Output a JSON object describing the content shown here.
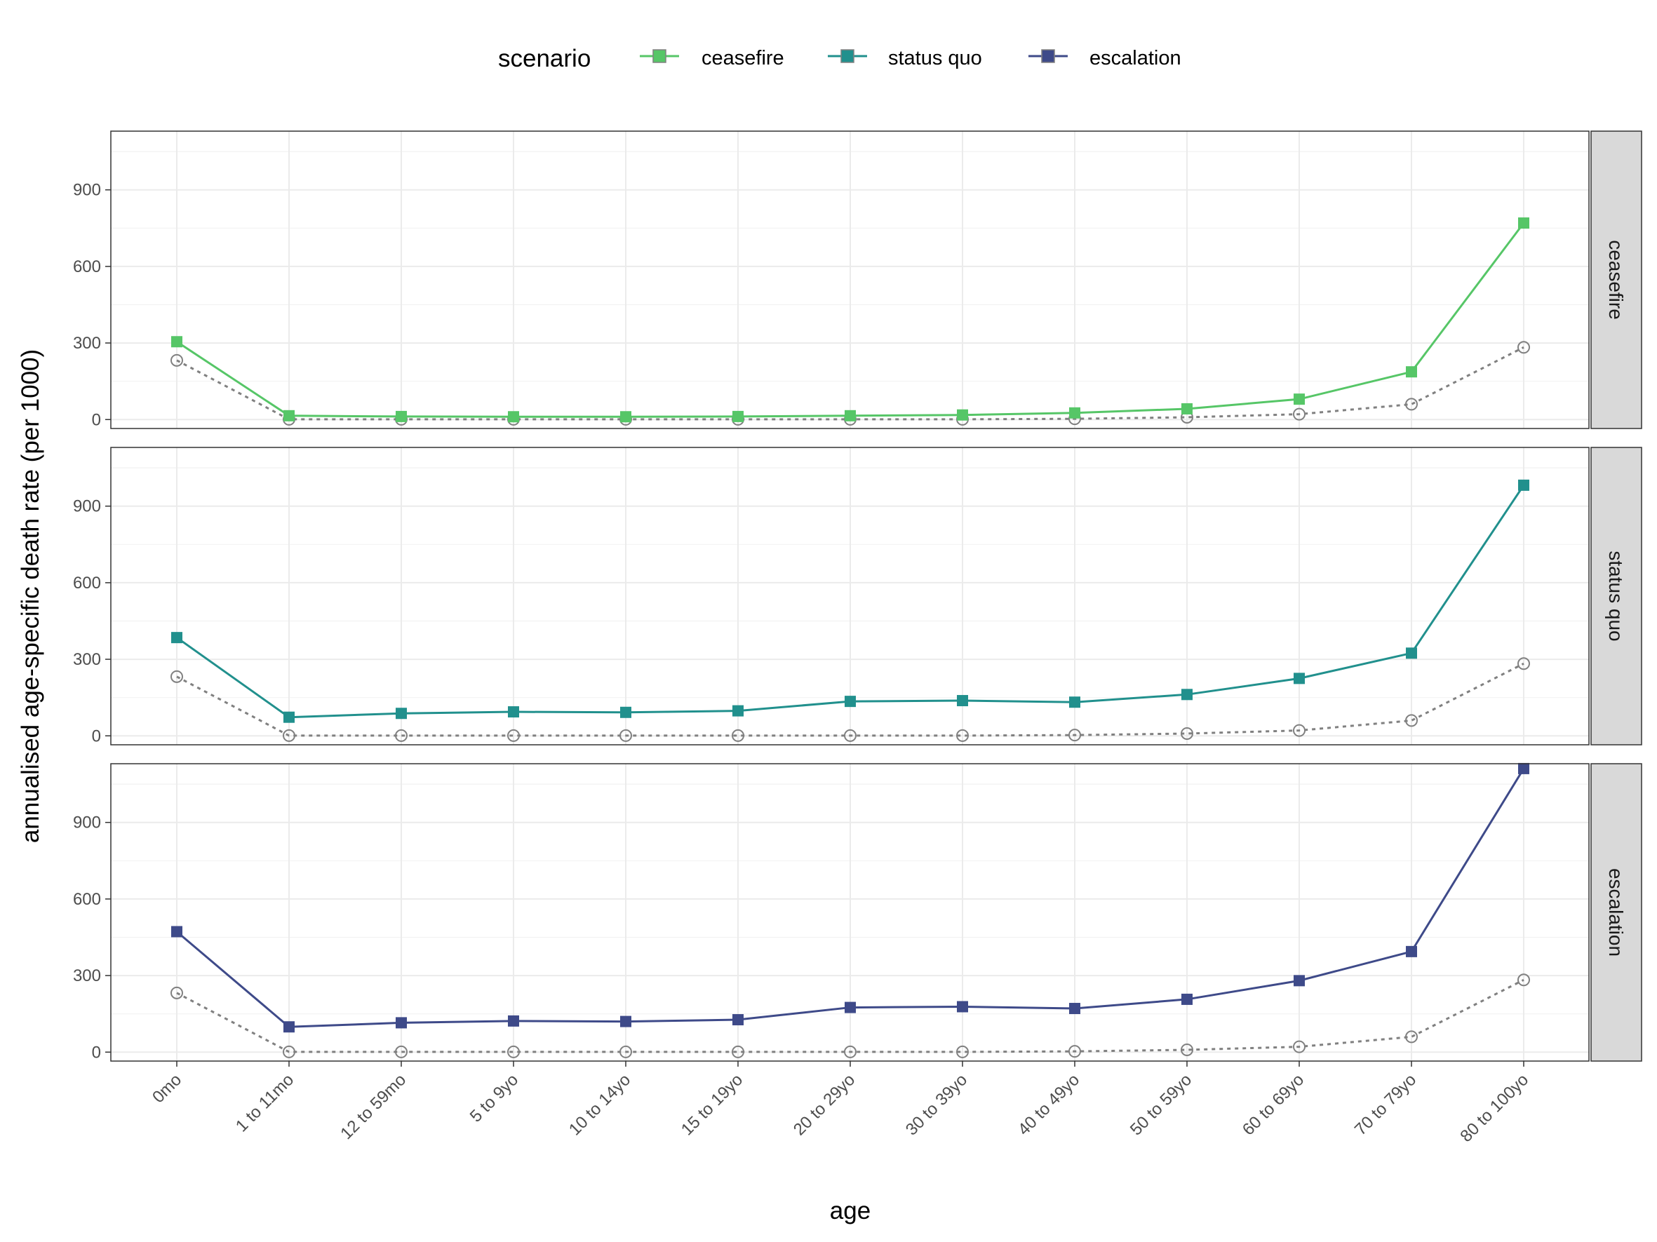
{
  "chart_data": {
    "type": "line",
    "xlabel": "age",
    "ylabel": "annualised age-specific death rate (per 1000)",
    "legend_title": "scenario",
    "legend_position": "top",
    "grid": true,
    "ylim": [
      -35,
      1130
    ],
    "yticks": [
      0,
      300,
      600,
      900
    ],
    "categories": [
      "0mo",
      "1 to 11mo",
      "12 to 59mo",
      "5 to 9yo",
      "10 to 14yo",
      "15 to 19yo",
      "20 to 29yo",
      "30 to 39yo",
      "40 to 49yo",
      "50 to 59yo",
      "60 to 69yo",
      "70 to 79yo",
      "80 to 100yo"
    ],
    "baseline": {
      "style": "dotted",
      "color": "#808080",
      "values": [
        232,
        1,
        1,
        1,
        1,
        1,
        1,
        1,
        3,
        9,
        21,
        60,
        283
      ]
    },
    "series": [
      {
        "name": "ceasefire",
        "color": "#56C667",
        "panel": "ceasefire",
        "values": [
          305,
          15,
          12,
          11,
          11,
          12,
          15,
          18,
          26,
          42,
          80,
          187,
          770
        ]
      },
      {
        "name": "status quo",
        "color": "#21908D",
        "panel": "status quo",
        "values": [
          385,
          73,
          88,
          94,
          92,
          98,
          135,
          138,
          132,
          162,
          225,
          324,
          982
        ]
      },
      {
        "name": "escalation",
        "color": "#3E4A89",
        "panel": "escalation",
        "values": [
          472,
          99,
          115,
          122,
          120,
          127,
          175,
          178,
          171,
          207,
          280,
          394,
          1111
        ]
      }
    ]
  }
}
